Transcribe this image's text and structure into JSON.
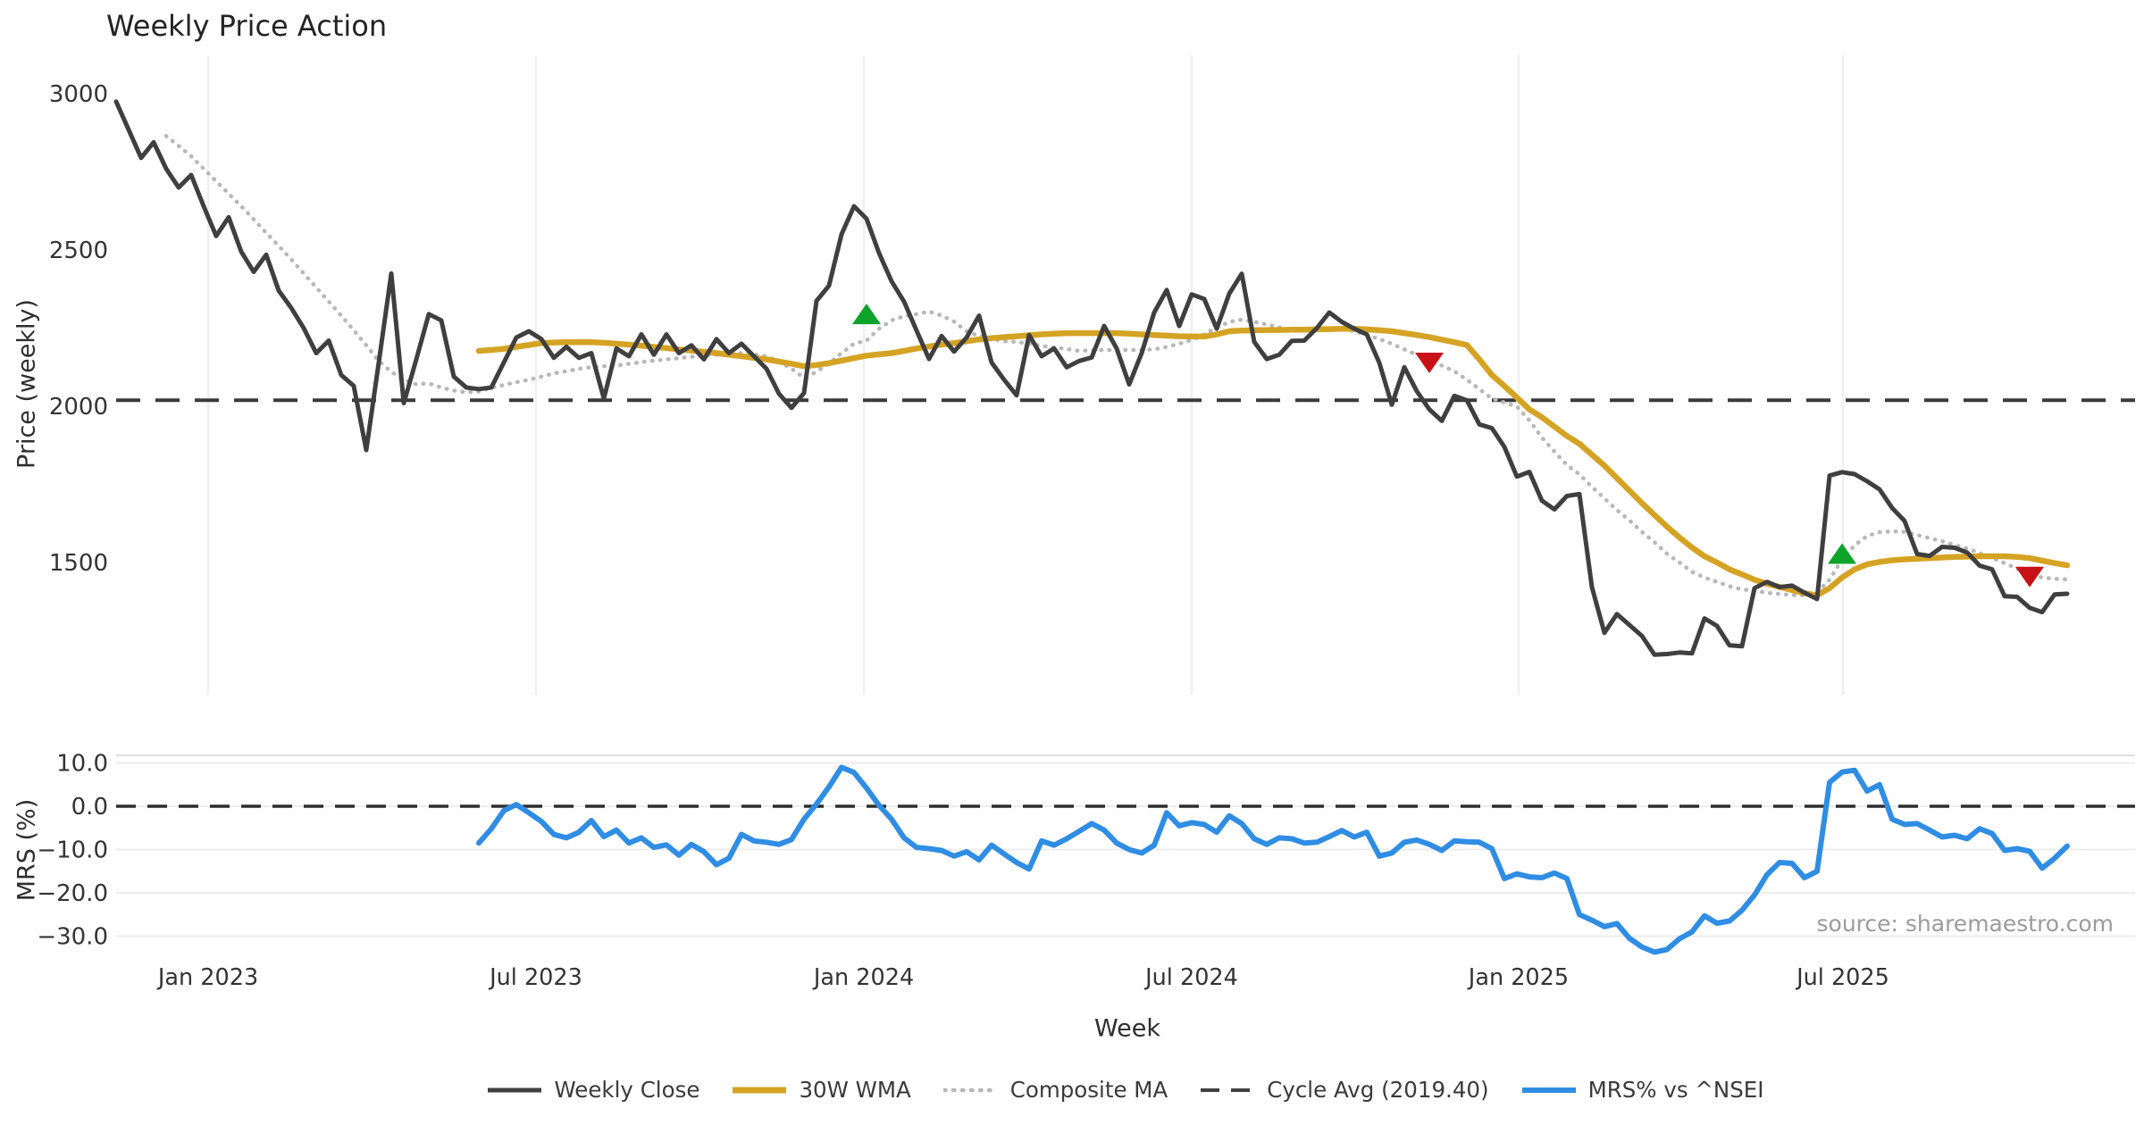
{
  "title": "Weekly Price Action",
  "source": "source: sharemaestro.com",
  "colors": {
    "grid": "#eef0f1",
    "hgrid": "#ececec",
    "panel_edge": "#e0e0e0",
    "cycle_dash": "#3a3a3a",
    "zero_dash": "#2d2d2d",
    "tick_text": "#333333",
    "title_text": "#232323",
    "source_text": "#9b9b9b",
    "marker_buy": "#0ea32b",
    "marker_sell": "#c81115"
  },
  "legend": {
    "items": [
      {
        "label": "Weekly Close",
        "color": "#3f3f3f",
        "style": "solid",
        "weight": 5
      },
      {
        "label": "30W WMA",
        "color": "#d5a324",
        "style": "solid",
        "weight": 7
      },
      {
        "label": "Composite MA",
        "color": "#b8b8b8",
        "style": "dotted",
        "weight": 4.5
      },
      {
        "label": "Cycle Avg (2019.40)",
        "color": "#3f3f3f",
        "style": "dashed",
        "weight": 4
      },
      {
        "label": "MRS% vs ^NSEI",
        "color": "#2f8de4",
        "style": "solid",
        "weight": 6
      }
    ]
  },
  "chart_data": {
    "type": "line",
    "x_unit": "week",
    "xlabel": "Week",
    "xticks": [
      {
        "label": "Jan 2023",
        "week": 7.36
      },
      {
        "label": "Jul 2023",
        "week": 33.57
      },
      {
        "label": "Jan 2024",
        "week": 59.79
      },
      {
        "label": "Jul 2024",
        "week": 86.0
      },
      {
        "label": "Jan 2025",
        "week": 112.14
      },
      {
        "label": "Jul 2025",
        "week": 138.07
      }
    ],
    "panels": [
      {
        "name": "price",
        "ylabel": "Price (weekly)",
        "ylim": [
          1080,
          3110
        ],
        "yticks": [
          {
            "label": "3000",
            "value": 3000
          },
          {
            "label": "2500",
            "value": 2500
          },
          {
            "label": "2000",
            "value": 2000
          },
          {
            "label": "1500",
            "value": 1500
          }
        ],
        "cycle_avg": 2019.4,
        "series": [
          {
            "name": "Composite MA",
            "color": "#b8b8b8",
            "style": "dotted",
            "weight": 4.5,
            "start_week": 4,
            "values": [
              2865,
              2833,
              2800,
              2760,
              2720,
              2680,
              2640,
              2598,
              2555,
              2513,
              2470,
              2425,
              2380,
              2335,
              2290,
              2243,
              2195,
              2145,
              2110,
              2085,
              2070,
              2073,
              2060,
              2050,
              2045,
              2047,
              2059,
              2068,
              2077,
              2085,
              2095,
              2105,
              2112,
              2120,
              2125,
              2128,
              2130,
              2136,
              2141,
              2146,
              2150,
              2154,
              2158,
              2162,
              2165,
              2168,
              2170,
              2166,
              2160,
              2143,
              2120,
              2091,
              2110,
              2137,
              2170,
              2200,
              2210,
              2248,
              2275,
              2288,
              2295,
              2303,
              2290,
              2271,
              2240,
              2225,
              2216,
              2208,
              2206,
              2200,
              2193,
              2188,
              2183,
              2177,
              2179,
              2180,
              2180,
              2180,
              2180,
              2182,
              2190,
              2200,
              2212,
              2230,
              2252,
              2270,
              2277,
              2270,
              2262,
              2252,
              2243,
              2243,
              2244,
              2246,
              2248,
              2240,
              2228,
              2215,
              2200,
              2182,
              2165,
              2148,
              2130,
              2112,
              2085,
              2055,
              2025,
              2012,
              1999,
              1955,
              1900,
              1855,
              1812,
              1782,
              1742,
              1705,
              1668,
              1635,
              1598,
              1565,
              1528,
              1500,
              1470,
              1452,
              1438,
              1424,
              1414,
              1409,
              1403,
              1399,
              1396,
              1395,
              1405,
              1445,
              1510,
              1555,
              1585,
              1597,
              1600,
              1598,
              1588,
              1578,
              1568,
              1556,
              1545,
              1530,
              1515,
              1498,
              1480,
              1462,
              1452,
              1448,
              1446
            ]
          },
          {
            "name": "30W WMA",
            "color": "#d5a324",
            "style": "solid",
            "weight": 6.5,
            "start_week": 29,
            "values": [
              2177,
              2180,
              2184,
              2190,
              2196,
              2202,
              2204,
              2205,
              2205,
              2205,
              2203,
              2200,
              2197,
              2194,
              2190,
              2186,
              2182,
              2178,
              2174,
              2170,
              2165,
              2160,
              2155,
              2150,
              2143,
              2136,
              2128,
              2132,
              2138,
              2146,
              2154,
              2162,
              2166,
              2170,
              2177,
              2185,
              2191,
              2197,
              2202,
              2208,
              2214,
              2218,
              2221,
              2224,
              2227,
              2230,
              2232,
              2234,
              2234,
              2234,
              2234,
              2234,
              2232,
              2230,
              2228,
              2226,
              2224,
              2223,
              2223,
              2230,
              2240,
              2242,
              2243,
              2244,
              2244,
              2245,
              2245,
              2246,
              2247,
              2248,
              2248,
              2246,
              2243,
              2240,
              2234,
              2228,
              2221,
              2213,
              2205,
              2196,
              2150,
              2100,
              2065,
              2028,
              1990,
              1965,
              1935,
              1905,
              1880,
              1845,
              1810,
              1770,
              1730,
              1690,
              1652,
              1615,
              1580,
              1548,
              1520,
              1500,
              1478,
              1462,
              1445,
              1432,
              1422,
              1412,
              1402,
              1395,
              1418,
              1452,
              1478,
              1494,
              1502,
              1507,
              1510,
              1512,
              1514,
              1516,
              1518,
              1519,
              1520,
              1520,
              1520,
              1518,
              1514,
              1506,
              1498,
              1491
            ]
          },
          {
            "name": "Weekly Close",
            "color": "#3f3f3f",
            "style": "solid",
            "weight": 5,
            "start_week": 0,
            "values": [
              2975,
              2885,
              2795,
              2845,
              2760,
              2700,
              2740,
              2640,
              2545,
              2605,
              2495,
              2430,
              2485,
              2370,
              2315,
              2250,
              2170,
              2210,
              2100,
              2065,
              1860,
              2140,
              2425,
              2010,
              2150,
              2295,
              2275,
              2095,
              2060,
              2055,
              2060,
              2140,
              2220,
              2240,
              2215,
              2155,
              2190,
              2155,
              2170,
              2025,
              2185,
              2160,
              2230,
              2165,
              2230,
              2170,
              2195,
              2150,
              2215,
              2170,
              2200,
              2160,
              2120,
              2040,
              1995,
              2042,
              2337,
              2386,
              2550,
              2640,
              2600,
              2490,
              2400,
              2335,
              2242,
              2151,
              2225,
              2175,
              2220,
              2290,
              2140,
              2085,
              2035,
              2228,
              2160,
              2185,
              2125,
              2145,
              2156,
              2257,
              2185,
              2070,
              2170,
              2300,
              2372,
              2257,
              2358,
              2343,
              2248,
              2360,
              2424,
              2206,
              2151,
              2165,
              2209,
              2210,
              2250,
              2300,
              2270,
              2248,
              2230,
              2139,
              2005,
              2125,
              2048,
              1990,
              1953,
              2033,
              2019,
              1942,
              1930,
              1870,
              1775,
              1790,
              1698,
              1670,
              1713,
              1719,
              1421,
              1275,
              1335,
              1300,
              1265,
              1205,
              1207,
              1212,
              1209,
              1321,
              1297,
              1235,
              1232,
              1418,
              1438,
              1421,
              1426,
              1403,
              1383,
              1778,
              1789,
              1783,
              1760,
              1734,
              1675,
              1633,
              1527,
              1521,
              1550,
              1547,
              1532,
              1490,
              1478,
              1392,
              1390,
              1355,
              1341,
              1398,
              1400
            ]
          }
        ],
        "markers": [
          {
            "signal": "buy",
            "week": 60,
            "price": 2294
          },
          {
            "signal": "sell",
            "week": 105,
            "price": 2140
          },
          {
            "signal": "buy",
            "week": 138,
            "price": 1527
          },
          {
            "signal": "sell",
            "week": 153,
            "price": 1455
          }
        ]
      },
      {
        "name": "mrs",
        "ylabel": "MRS (%)",
        "ylim": [
          -37,
          13
        ],
        "zero_line_dashed": true,
        "yticks": [
          {
            "label": "10.0",
            "value": 10
          },
          {
            "label": "0.0",
            "value": 0
          },
          {
            "label": "−10.0",
            "value": -10
          },
          {
            "label": "−20.0",
            "value": -20
          },
          {
            "label": "−30.0",
            "value": -30
          }
        ],
        "series": [
          {
            "name": "MRS% vs ^NSEI",
            "color": "#2f8de4",
            "style": "solid",
            "weight": 6,
            "start_week": 29,
            "values": [
              -8.5,
              -5.2,
              -1.0,
              0.4,
              -1.5,
              -3.5,
              -6.5,
              -7.3,
              -6.0,
              -3.3,
              -7.0,
              -5.5,
              -8.5,
              -7.3,
              -9.5,
              -8.9,
              -11.3,
              -8.8,
              -10.5,
              -13.5,
              -12.0,
              -6.5,
              -8.0,
              -8.3,
              -8.8,
              -7.7,
              -3.0,
              0.5,
              4.5,
              9.0,
              7.8,
              4.2,
              0.2,
              -3.0,
              -7.3,
              -9.5,
              -9.8,
              -10.2,
              -11.5,
              -10.5,
              -12.4,
              -9.0,
              -11.0,
              -13.0,
              -14.5,
              -8.0,
              -9.0,
              -7.5,
              -5.8,
              -4.0,
              -5.5,
              -8.5,
              -10.0,
              -10.8,
              -9.0,
              -1.5,
              -4.5,
              -3.8,
              -4.2,
              -6.0,
              -2.2,
              -4.0,
              -7.5,
              -8.8,
              -7.3,
              -7.5,
              -8.5,
              -8.3,
              -7.0,
              -5.6,
              -7.1,
              -6.0,
              -11.5,
              -10.8,
              -8.3,
              -7.8,
              -8.8,
              -10.2,
              -8.0,
              -8.2,
              -8.3,
              -9.8,
              -16.7,
              -15.6,
              -16.3,
              -16.5,
              -15.4,
              -16.7,
              -25.0,
              -26.3,
              -27.8,
              -27.1,
              -30.5,
              -32.5,
              -33.7,
              -33.1,
              -30.6,
              -29.0,
              -25.3,
              -27.0,
              -26.5,
              -24.0,
              -20.5,
              -15.8,
              -13.0,
              -13.2,
              -16.5,
              -15.0,
              5.5,
              7.9,
              8.3,
              3.5,
              5.0,
              -3.0,
              -4.2,
              -4.0,
              -5.5,
              -7.1,
              -6.7,
              -7.5,
              -5.2,
              -6.3,
              -10.2,
              -9.8,
              -10.4,
              -14.3,
              -12.0,
              -9.2
            ]
          }
        ]
      }
    ]
  }
}
